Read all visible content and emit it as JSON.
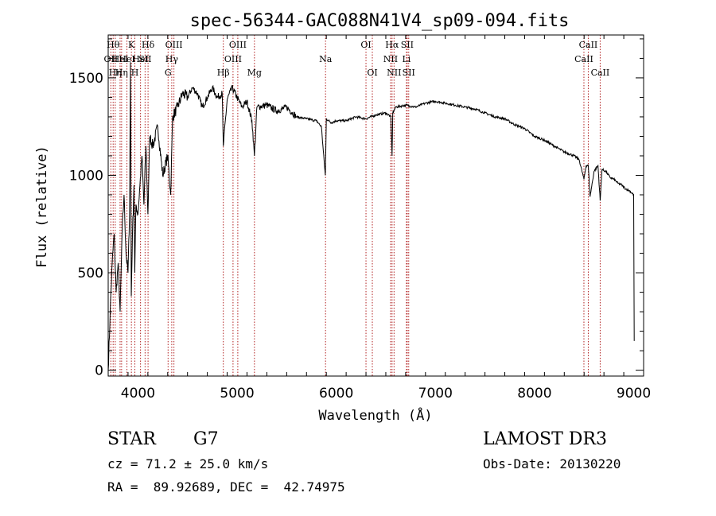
{
  "chart_data": {
    "type": "line",
    "title": "spec-56344-GAC088N41V4_sp09-094.fits",
    "xlabel": "Wavelength (Å)",
    "ylabel": "Flux (relative)",
    "xlim": [
      3700,
      9100
    ],
    "ylim": [
      -30,
      1720
    ],
    "xticks": [
      4000,
      5000,
      6000,
      7000,
      8000,
      9000
    ],
    "yticks": [
      0,
      500,
      1000,
      1500
    ],
    "grid": false,
    "series": [
      {
        "name": "flux",
        "x": [
          3700,
          3720,
          3740,
          3760,
          3780,
          3800,
          3820,
          3840,
          3860,
          3880,
          3900,
          3915,
          3925,
          3933,
          3945,
          3960,
          3968,
          3980,
          4000,
          4020,
          4040,
          4060,
          4080,
          4100,
          4120,
          4150,
          4200,
          4250,
          4300,
          4330,
          4350,
          4400,
          4450,
          4500,
          4550,
          4600,
          4650,
          4700,
          4750,
          4800,
          4850,
          4861,
          4900,
          4950,
          5000,
          5050,
          5100,
          5150,
          5175,
          5200,
          5300,
          5400,
          5500,
          5600,
          5700,
          5800,
          5850,
          5890,
          5900,
          5950,
          6000,
          6100,
          6200,
          6300,
          6400,
          6500,
          6550,
          6563,
          6570,
          6600,
          6700,
          6800,
          6900,
          7000,
          7100,
          7200,
          7300,
          7400,
          7500,
          7600,
          7700,
          7800,
          7900,
          8000,
          8100,
          8200,
          8300,
          8400,
          8450,
          8498,
          8520,
          8542,
          8560,
          8600,
          8640,
          8662,
          8680,
          8720,
          8760,
          8800,
          8840,
          8880,
          8920,
          8960,
          9000,
          9005
        ],
        "y": [
          0,
          300,
          550,
          700,
          400,
          550,
          300,
          700,
          900,
          600,
          500,
          800,
          1580,
          380,
          700,
          950,
          500,
          850,
          800,
          950,
          1100,
          850,
          1150,
          800,
          1200,
          1150,
          1250,
          1000,
          1100,
          900,
          1300,
          1350,
          1420,
          1400,
          1450,
          1420,
          1350,
          1400,
          1450,
          1400,
          1420,
          1150,
          1390,
          1450,
          1400,
          1350,
          1380,
          1280,
          1100,
          1350,
          1360,
          1330,
          1350,
          1300,
          1290,
          1280,
          1250,
          1000,
          1290,
          1270,
          1280,
          1280,
          1300,
          1290,
          1310,
          1320,
          1300,
          1100,
          1320,
          1350,
          1360,
          1350,
          1370,
          1380,
          1370,
          1360,
          1350,
          1340,
          1320,
          1300,
          1290,
          1260,
          1240,
          1200,
          1180,
          1150,
          1120,
          1100,
          1080,
          980,
          1050,
          1050,
          890,
          1020,
          1050,
          870,
          1030,
          1020,
          990,
          980,
          960,
          950,
          930,
          920,
          900,
          150
        ]
      }
    ],
    "lines": [
      {
        "x": 3727,
        "label": "OII",
        "row": 2
      },
      {
        "x": 3750,
        "label": "Hθ",
        "row": 1
      },
      {
        "x": 3771,
        "label": "Hη",
        "row": 3
      },
      {
        "x": 3820,
        "label": "HeI",
        "row": 2
      },
      {
        "x": 3835,
        "label": "Hη",
        "row": 3
      },
      {
        "x": 3889,
        "label": "HeI",
        "row": 2
      },
      {
        "x": 3934,
        "label": "K",
        "row": 1
      },
      {
        "x": 3969,
        "label": "H",
        "row": 3
      },
      {
        "x": 4026,
        "label": "HeI",
        "row": 2
      },
      {
        "x": 4072,
        "label": "SII",
        "row": 2
      },
      {
        "x": 4102,
        "label": "Hδ",
        "row": 1
      },
      {
        "x": 4304,
        "label": "G",
        "row": 3
      },
      {
        "x": 4341,
        "label": "Hγ",
        "row": 2
      },
      {
        "x": 4363,
        "label": "OIII",
        "row": 1
      },
      {
        "x": 4861,
        "label": "Hβ",
        "row": 3
      },
      {
        "x": 4959,
        "label": "OIII",
        "row": 2
      },
      {
        "x": 5007,
        "label": "OIII",
        "row": 1
      },
      {
        "x": 5175,
        "label": "Mg",
        "row": 3
      },
      {
        "x": 5892,
        "label": "Na",
        "row": 2
      },
      {
        "x": 6300,
        "label": "OI",
        "row": 1
      },
      {
        "x": 6364,
        "label": "OI",
        "row": 3
      },
      {
        "x": 6548,
        "label": "NII",
        "row": 2
      },
      {
        "x": 6563,
        "label": "Hα",
        "row": 1
      },
      {
        "x": 6583,
        "label": "NII",
        "row": 3
      },
      {
        "x": 6708,
        "label": "Li",
        "row": 2
      },
      {
        "x": 6716,
        "label": "SII",
        "row": 1
      },
      {
        "x": 6731,
        "label": "SII",
        "row": 3
      },
      {
        "x": 8498,
        "label": "CaII",
        "row": 2
      },
      {
        "x": 8542,
        "label": "CaII",
        "row": 1
      },
      {
        "x": 8662,
        "label": "CaII",
        "row": 3
      }
    ]
  },
  "info": {
    "class": "STAR",
    "subclass": "G7",
    "survey": "LAMOST DR3",
    "cz": "cz = 71.2 ± 25.0 km/s",
    "obs_date": "Obs-Date: 20130220",
    "coords": "RA =  89.92689, DEC =  42.74975"
  },
  "colors": {
    "line_marker": "#b22222",
    "spectrum": "#000000",
    "axis": "#000000"
  }
}
